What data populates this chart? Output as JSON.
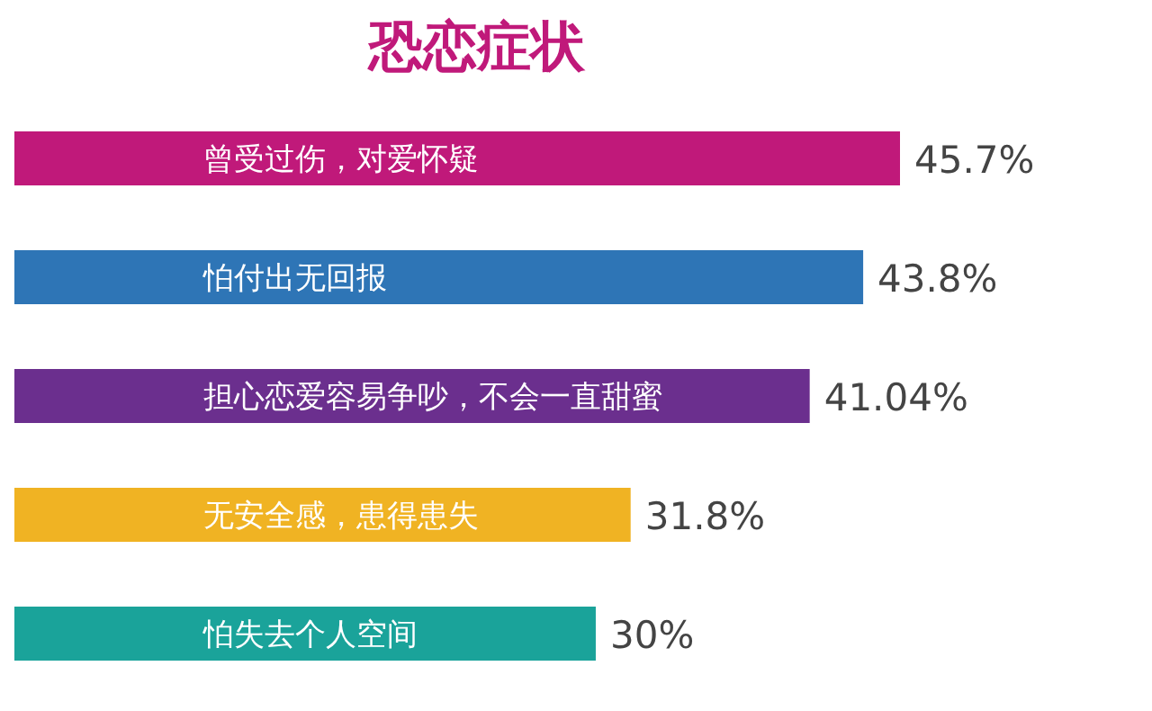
{
  "chart_data": {
    "type": "bar",
    "orientation": "horizontal",
    "title": "恐恋症状",
    "categories": [
      "曾受过伤，对爱怀疑",
      "怕付出无回报",
      "担心恋爱容易争吵，不会一直甜蜜",
      "无安全感，患得患失",
      "怕失去个人空间"
    ],
    "values": [
      45.7,
      43.8,
      41.04,
      31.8,
      30
    ],
    "colors": [
      "#c0197a",
      "#2e75b6",
      "#6b2f8e",
      "#f0b323",
      "#1aa39a"
    ],
    "value_labels": [
      "45.7%",
      "43.8%",
      "41.04%",
      "31.8%",
      "30%"
    ]
  }
}
